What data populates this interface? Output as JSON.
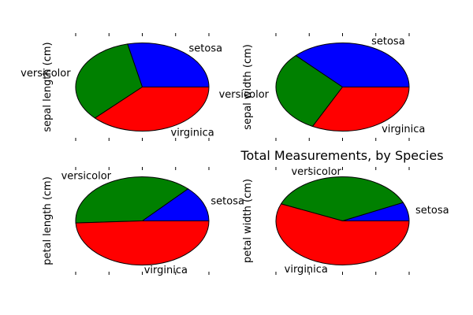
{
  "chart_data": [
    {
      "type": "pie",
      "ylabel": "sepal length (cm)",
      "categories": [
        "setosa",
        "versicolor",
        "virginica"
      ],
      "values": [
        250.3,
        296.8,
        329.4
      ],
      "colors": [
        "#0000ff",
        "#008000",
        "#ff0000"
      ]
    },
    {
      "type": "pie",
      "ylabel": "sepal width (cm)",
      "categories": [
        "setosa",
        "versicolor",
        "virginica"
      ],
      "values": [
        171.4,
        138.5,
        148.7
      ],
      "colors": [
        "#0000ff",
        "#008000",
        "#ff0000"
      ]
    },
    {
      "type": "pie",
      "ylabel": "petal length (cm)",
      "categories": [
        "setosa",
        "versicolor",
        "virginica"
      ],
      "values": [
        73.1,
        213.0,
        277.6
      ],
      "colors": [
        "#0000ff",
        "#008000",
        "#ff0000"
      ]
    },
    {
      "type": "pie",
      "ylabel": "petal width (cm)",
      "categories": [
        "setosa",
        "versicolor",
        "virginica"
      ],
      "values": [
        12.3,
        66.3,
        101.3
      ],
      "colors": [
        "#0000ff",
        "#008000",
        "#ff0000"
      ]
    }
  ],
  "title": "Total Measurements, by Species"
}
